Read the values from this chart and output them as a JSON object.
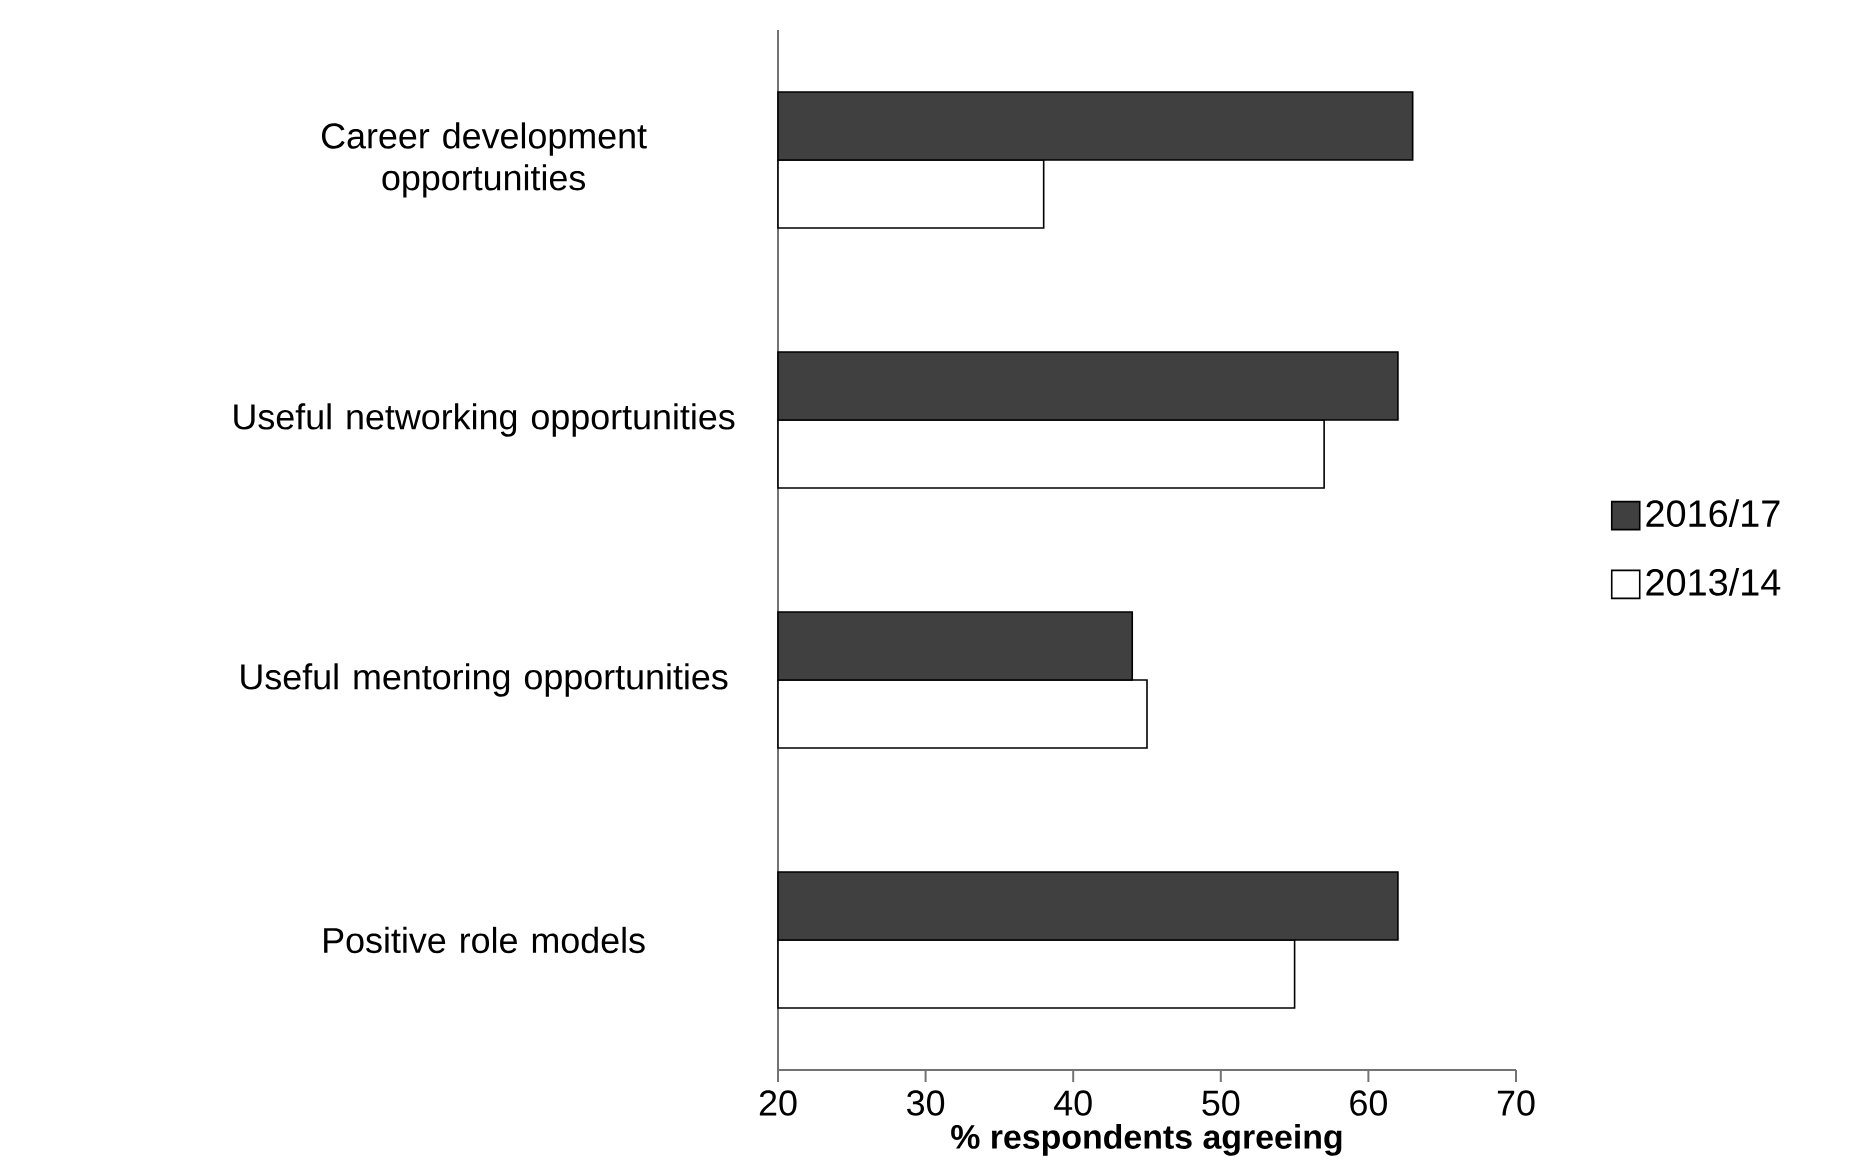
{
  "chart_data": {
    "type": "bar",
    "orientation": "horizontal",
    "categories": [
      "Career development opportunities",
      "Useful networking opportunities",
      "Useful mentoring opportunities",
      "Positive role models"
    ],
    "series": [
      {
        "name": "2016/17",
        "color": "#404040",
        "values": [
          63,
          62,
          44,
          62
        ]
      },
      {
        "name": "2013/14",
        "color": "#ffffff",
        "values": [
          38,
          57,
          45,
          55
        ]
      }
    ],
    "xlabel": "% respondents agreeing",
    "xlim": [
      20,
      70
    ],
    "xticks": [
      20,
      30,
      40,
      50,
      60,
      70
    ],
    "grid": false,
    "legend": "right"
  }
}
